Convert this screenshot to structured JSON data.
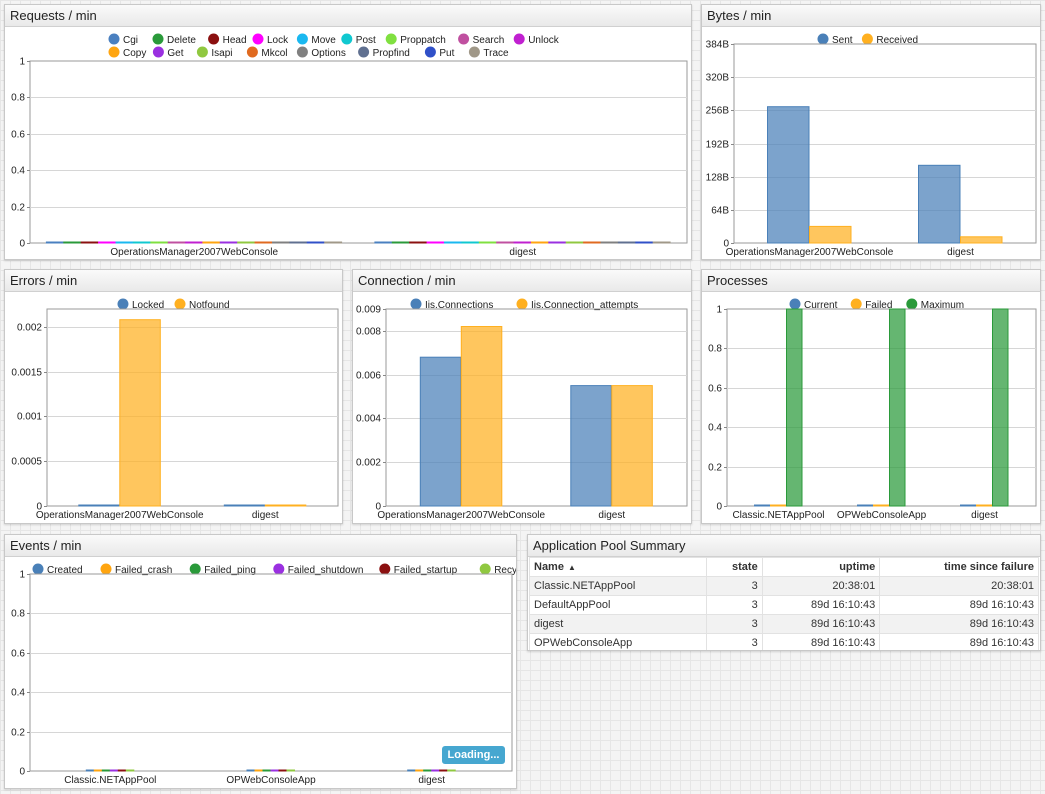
{
  "widgets": {
    "requests": {
      "title": "Requests / min",
      "legend": [
        {
          "label": "Cgi",
          "color": "#4a80c0"
        },
        {
          "label": "Delete",
          "color": "#2a9a3a"
        },
        {
          "label": "Head",
          "color": "#8b1010"
        },
        {
          "label": "Lock",
          "color": "#ff00ff"
        },
        {
          "label": "Move",
          "color": "#1ab8f0"
        },
        {
          "label": "Post",
          "color": "#10c8d0"
        },
        {
          "label": "Proppatch",
          "color": "#80e040"
        },
        {
          "label": "Search",
          "color": "#c050a0"
        },
        {
          "label": "Unlock",
          "color": "#c020d0"
        },
        {
          "label": "Copy",
          "color": "#ffa510"
        },
        {
          "label": "Get",
          "color": "#9a30e0"
        },
        {
          "label": "Isapi",
          "color": "#90c840"
        },
        {
          "label": "Mkcol",
          "color": "#e06a20"
        },
        {
          "label": "Options",
          "color": "#808080"
        },
        {
          "label": "Propfind",
          "color": "#607090"
        },
        {
          "label": "Put",
          "color": "#3050c8"
        },
        {
          "label": "Trace",
          "color": "#a09888"
        }
      ]
    },
    "bytes": {
      "title": "Bytes / min",
      "legend": [
        {
          "label": "Sent",
          "color": "#4a80b8"
        },
        {
          "label": "Received",
          "color": "#ffb020"
        }
      ]
    },
    "errors": {
      "title": "Errors / min",
      "legend": [
        {
          "label": "Locked",
          "color": "#4a80b8"
        },
        {
          "label": "Notfound",
          "color": "#ffb020"
        }
      ]
    },
    "connection": {
      "title": "Connection / min",
      "legend": [
        {
          "label": "Iis.Connections",
          "color": "#4a80b8"
        },
        {
          "label": "Iis.Connection_attempts",
          "color": "#ffb020"
        }
      ]
    },
    "processes": {
      "title": "Processes",
      "legend": [
        {
          "label": "Current",
          "color": "#4a80b8"
        },
        {
          "label": "Failed",
          "color": "#ffb020"
        },
        {
          "label": "Maximum",
          "color": "#2a9a3a"
        }
      ]
    },
    "events": {
      "title": "Events / min",
      "loading_label": "Loading...",
      "legend": [
        {
          "label": "Created",
          "color": "#4a80b8"
        },
        {
          "label": "Failed_crash",
          "color": "#ffa510"
        },
        {
          "label": "Failed_ping",
          "color": "#2a9a3a"
        },
        {
          "label": "Failed_shutdown",
          "color": "#9a30e0"
        },
        {
          "label": "Failed_startup",
          "color": "#8b1010"
        },
        {
          "label": "Recycled",
          "color": "#90c840"
        }
      ]
    },
    "pool_summary": {
      "title": "Application Pool Summary",
      "columns": [
        "Name",
        "state",
        "uptime",
        "time since failure"
      ],
      "rows": [
        {
          "name": "Classic.NETAppPool",
          "state": "3",
          "uptime": "20:38:01",
          "since_failure": "20:38:01"
        },
        {
          "name": "DefaultAppPool",
          "state": "3",
          "uptime": "89d 16:10:43",
          "since_failure": "89d 16:10:43"
        },
        {
          "name": "digest",
          "state": "3",
          "uptime": "89d 16:10:43",
          "since_failure": "89d 16:10:43"
        },
        {
          "name": "OPWebConsoleApp",
          "state": "3",
          "uptime": "89d 16:10:43",
          "since_failure": "89d 16:10:43"
        }
      ]
    }
  },
  "chart_data": [
    {
      "id": "requests",
      "type": "bar",
      "categories": [
        "OperationsManager2007WebConsole",
        "digest"
      ],
      "ylim": [
        0,
        1
      ],
      "yticks": [
        "0",
        "0.2",
        "0.4",
        "0.6",
        "0.8",
        "1"
      ],
      "series": [
        {
          "name": "Cgi",
          "values": [
            0,
            0
          ]
        },
        {
          "name": "Delete",
          "values": [
            0,
            0
          ]
        },
        {
          "name": "Head",
          "values": [
            0,
            0
          ]
        },
        {
          "name": "Lock",
          "values": [
            0,
            0
          ]
        },
        {
          "name": "Move",
          "values": [
            0,
            0
          ]
        },
        {
          "name": "Post",
          "values": [
            0,
            0
          ]
        },
        {
          "name": "Proppatch",
          "values": [
            0,
            0
          ]
        },
        {
          "name": "Search",
          "values": [
            0,
            0
          ]
        },
        {
          "name": "Unlock",
          "values": [
            0,
            0
          ]
        },
        {
          "name": "Copy",
          "values": [
            0,
            0
          ]
        },
        {
          "name": "Get",
          "values": [
            0,
            0
          ]
        },
        {
          "name": "Isapi",
          "values": [
            0,
            0
          ]
        },
        {
          "name": "Mkcol",
          "values": [
            0,
            0
          ]
        },
        {
          "name": "Options",
          "values": [
            0,
            0
          ]
        },
        {
          "name": "Propfind",
          "values": [
            0,
            0
          ]
        },
        {
          "name": "Put",
          "values": [
            0,
            0
          ]
        },
        {
          "name": "Trace",
          "values": [
            0,
            0
          ]
        }
      ]
    },
    {
      "id": "bytes",
      "type": "bar",
      "categories": [
        "OperationsManager2007WebConsole",
        "digest"
      ],
      "ylim": [
        0,
        384
      ],
      "ytick_values": [
        0,
        64,
        128,
        192,
        256,
        320,
        384
      ],
      "yticks": [
        "0",
        "64B",
        "128B",
        "192B",
        "256B",
        "320B",
        "384B"
      ],
      "series": [
        {
          "name": "Sent",
          "values": [
            263,
            150
          ]
        },
        {
          "name": "Received",
          "values": [
            32,
            12
          ]
        }
      ]
    },
    {
      "id": "errors",
      "type": "bar",
      "categories": [
        "OperationsManager2007WebConsole",
        "digest"
      ],
      "ylim": [
        0,
        0.0022
      ],
      "ytick_values": [
        0,
        0.0005,
        0.001,
        0.0015,
        0.002
      ],
      "yticks": [
        "0",
        "0.0005",
        "0.001",
        "0.0015",
        "0.002"
      ],
      "series": [
        {
          "name": "Locked",
          "values": [
            0,
            0
          ]
        },
        {
          "name": "Notfound",
          "values": [
            0.00208,
            0
          ]
        }
      ]
    },
    {
      "id": "connection",
      "type": "bar",
      "categories": [
        "OperationsManager2007WebConsole",
        "digest"
      ],
      "ylim": [
        0,
        0.009
      ],
      "ytick_values": [
        0,
        0.002,
        0.004,
        0.006,
        0.008,
        0.009
      ],
      "yticks": [
        "0",
        "0.002",
        "0.004",
        "0.006",
        "0.008",
        "0.009"
      ],
      "series": [
        {
          "name": "Iis.Connections",
          "values": [
            0.0068,
            0.0055
          ]
        },
        {
          "name": "Iis.Connection_attempts",
          "values": [
            0.0082,
            0.0055
          ]
        }
      ]
    },
    {
      "id": "processes",
      "type": "bar",
      "categories": [
        "Classic.NETAppPool",
        "OPWebConsoleApp",
        "digest"
      ],
      "ylim": [
        0,
        1
      ],
      "ytick_values": [
        0,
        0.2,
        0.4,
        0.6,
        0.8,
        1
      ],
      "yticks": [
        "0",
        "0.2",
        "0.4",
        "0.6",
        "0.8",
        "1"
      ],
      "series": [
        {
          "name": "Current",
          "values": [
            0,
            0,
            0
          ]
        },
        {
          "name": "Failed",
          "values": [
            0,
            0,
            0
          ]
        },
        {
          "name": "Maximum",
          "values": [
            1,
            1,
            1
          ]
        }
      ]
    },
    {
      "id": "events",
      "type": "bar",
      "categories": [
        "Classic.NETAppPool",
        "OPWebConsoleApp",
        "digest"
      ],
      "ylim": [
        0,
        1
      ],
      "ytick_values": [
        0,
        0.2,
        0.4,
        0.6,
        0.8,
        1
      ],
      "yticks": [
        "0",
        "0.2",
        "0.4",
        "0.6",
        "0.8",
        "1"
      ],
      "series": [
        {
          "name": "Created",
          "values": [
            0,
            0,
            0
          ]
        },
        {
          "name": "Failed_crash",
          "values": [
            0,
            0,
            0
          ]
        },
        {
          "name": "Failed_ping",
          "values": [
            0,
            0,
            0
          ]
        },
        {
          "name": "Failed_shutdown",
          "values": [
            0,
            0,
            0
          ]
        },
        {
          "name": "Failed_startup",
          "values": [
            0,
            0,
            0
          ]
        },
        {
          "name": "Recycled",
          "values": [
            0,
            0,
            0
          ]
        }
      ]
    }
  ]
}
